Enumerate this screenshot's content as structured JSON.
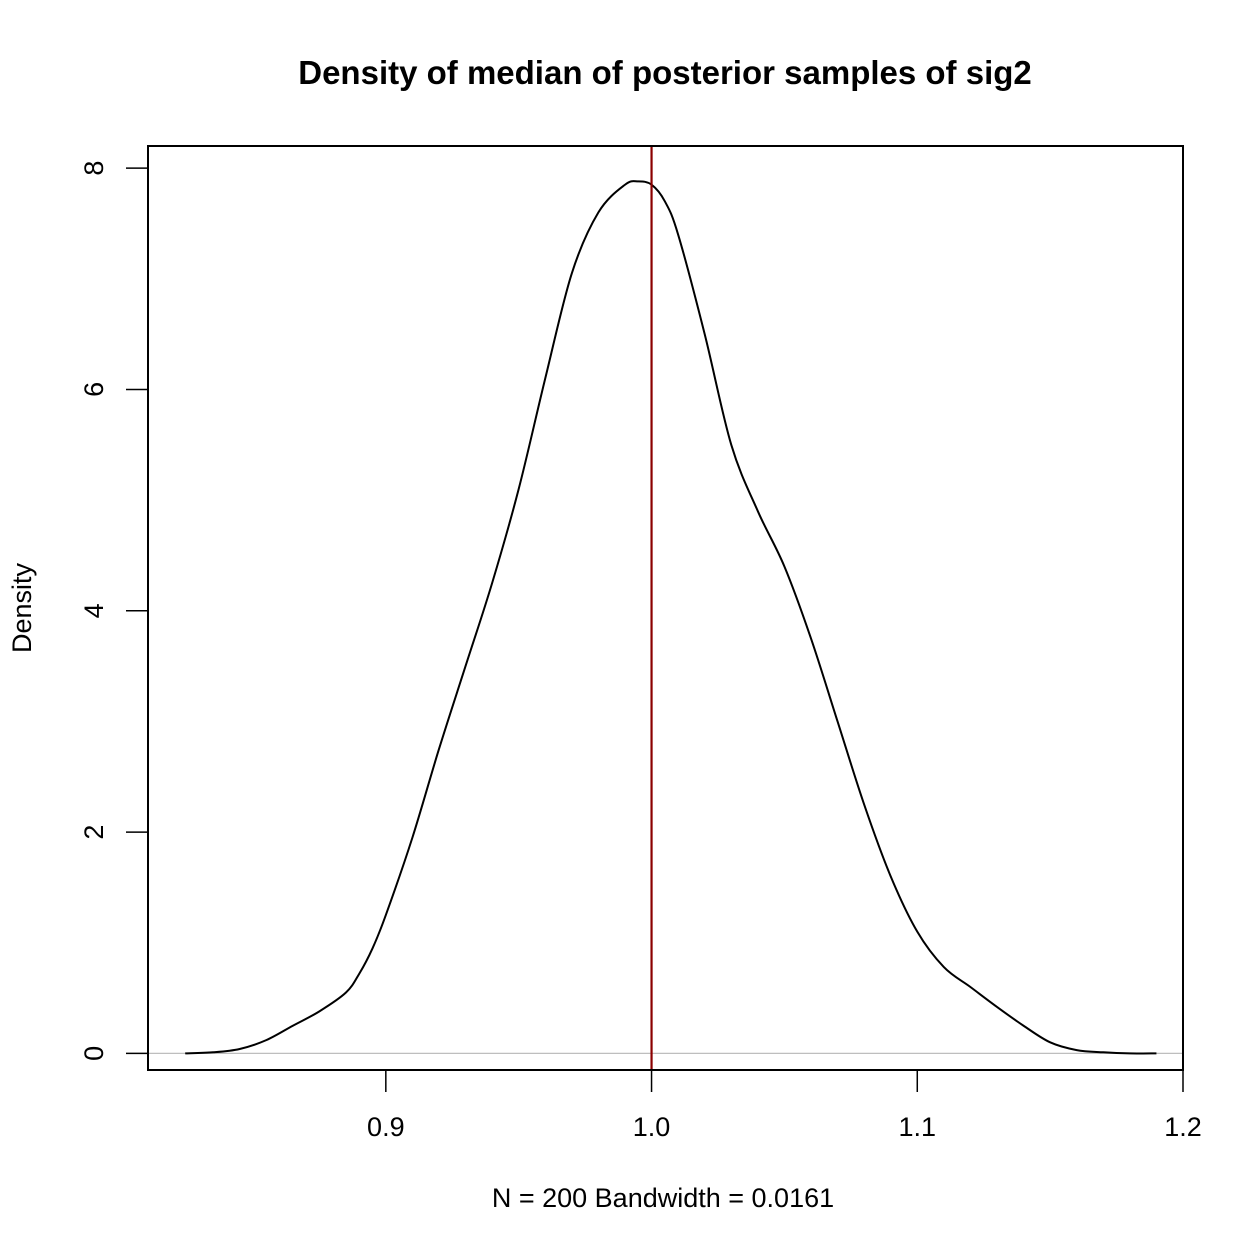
{
  "chart_data": {
    "type": "line",
    "title": "Density of median of posterior samples of sig2",
    "xlabel": "N = 200   Bandwidth = 0.0161",
    "ylabel": "Density",
    "xlim": [
      0.8105,
      1.2
    ],
    "ylim": [
      -0.15,
      8.2
    ],
    "x_ticks": [
      {
        "value": 0.9,
        "label": "0.9"
      },
      {
        "value": 1.0,
        "label": "1.0"
      },
      {
        "value": 1.1,
        "label": "1.1"
      },
      {
        "value": 1.2,
        "label": "1.2"
      }
    ],
    "y_ticks": [
      {
        "value": 0,
        "label": "0"
      },
      {
        "value": 2,
        "label": "2"
      },
      {
        "value": 4,
        "label": "4"
      },
      {
        "value": 6,
        "label": "6"
      },
      {
        "value": 8,
        "label": "8"
      }
    ],
    "grid": false,
    "baseline": {
      "y": 0,
      "color": "#bebebe"
    },
    "vline": {
      "x": 1.0,
      "color": "#8b0000"
    },
    "series": [
      {
        "color": "#000000",
        "x": [
          0.8245,
          0.835,
          0.845,
          0.855,
          0.865,
          0.875,
          0.885,
          0.89,
          0.895,
          0.9,
          0.91,
          0.92,
          0.93,
          0.94,
          0.95,
          0.96,
          0.97,
          0.98,
          0.99,
          0.995,
          1.0,
          1.005,
          1.01,
          1.02,
          1.03,
          1.04,
          1.05,
          1.06,
          1.07,
          1.08,
          1.09,
          1.1,
          1.11,
          1.12,
          1.13,
          1.14,
          1.15,
          1.16,
          1.17,
          1.18,
          1.19
        ],
        "y": [
          0.0,
          0.01,
          0.04,
          0.12,
          0.25,
          0.38,
          0.55,
          0.72,
          0.95,
          1.25,
          1.95,
          2.75,
          3.5,
          4.25,
          5.1,
          6.1,
          7.05,
          7.6,
          7.85,
          7.88,
          7.85,
          7.7,
          7.4,
          6.5,
          5.5,
          4.9,
          4.4,
          3.75,
          3.0,
          2.25,
          1.6,
          1.1,
          0.78,
          0.6,
          0.42,
          0.25,
          0.1,
          0.03,
          0.01,
          0.0,
          0.0
        ]
      }
    ]
  }
}
